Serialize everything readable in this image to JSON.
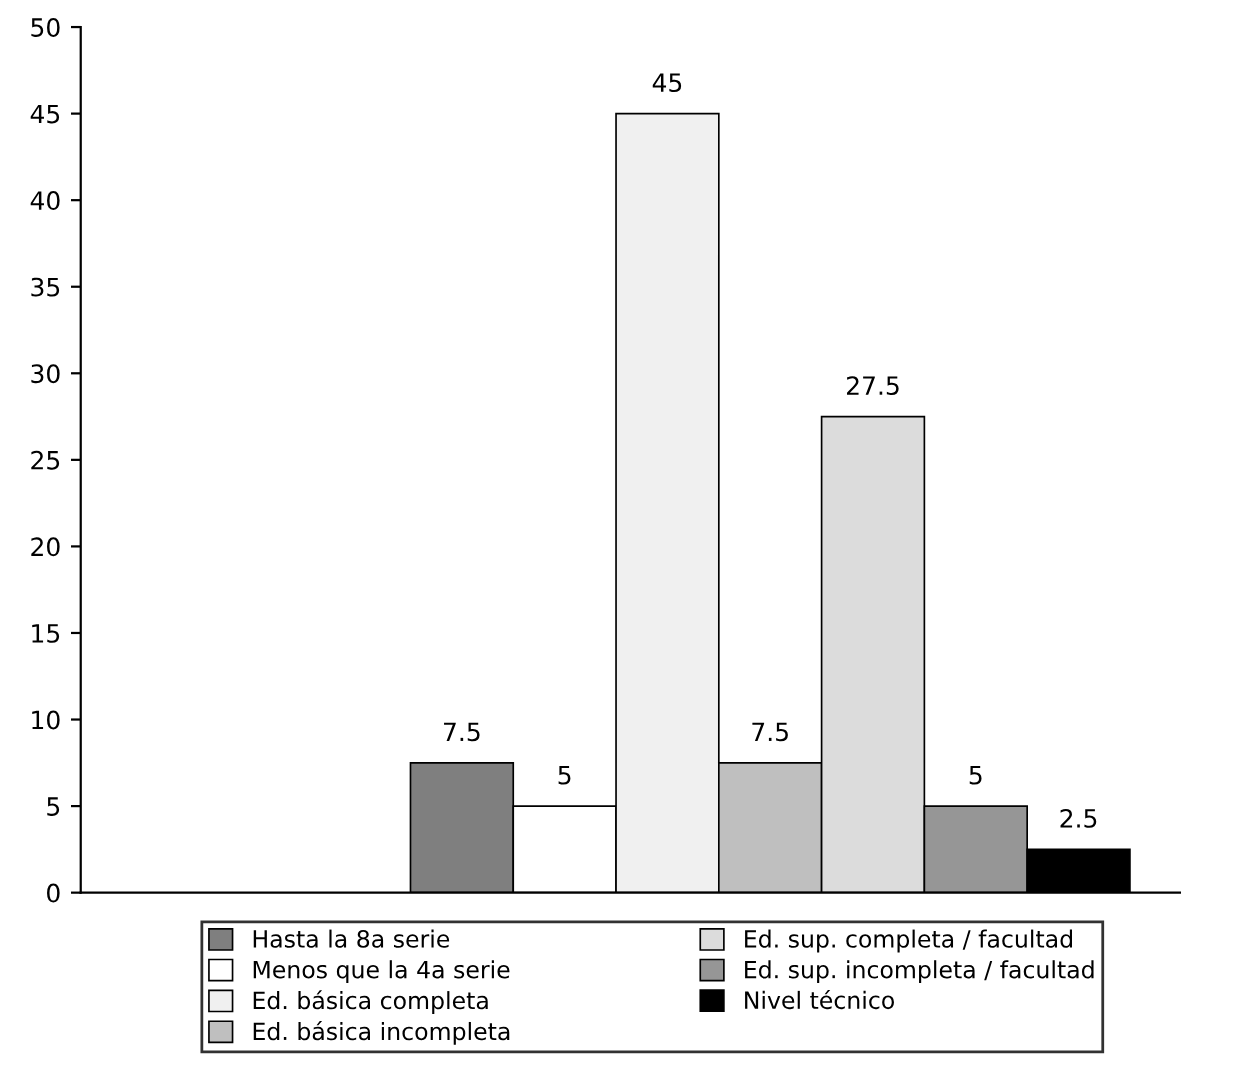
{
  "chart_data": {
    "type": "bar",
    "categories": [
      null
    ],
    "series": [
      {
        "name": "Hasta la 8a serie",
        "color": "#7f7f7f",
        "values": [
          7.5
        ]
      },
      {
        "name": "Menos que la 4a serie",
        "color": "#ffffff",
        "values": [
          5
        ]
      },
      {
        "name": "Ed. básica completa",
        "color": "#f0f0f0",
        "values": [
          45
        ]
      },
      {
        "name": "Ed. básica incompleta",
        "color": "#bfbfbf",
        "values": [
          7.5
        ]
      },
      {
        "name": "Ed. sup. completa / facultad",
        "color": "#dcdcdc",
        "values": [
          27.5
        ]
      },
      {
        "name": "Ed. sup. incompleta / facultad",
        "color": "#969696",
        "values": [
          5
        ]
      },
      {
        "name": "Nivel técnico",
        "color": "#000000",
        "values": [
          2.5
        ]
      }
    ],
    "ylim": [
      0,
      50
    ],
    "yticks": [
      0,
      5,
      10,
      15,
      20,
      25,
      30,
      35,
      40,
      45,
      50
    ],
    "grid": false,
    "legend": "bottom",
    "data_labels": true
  }
}
